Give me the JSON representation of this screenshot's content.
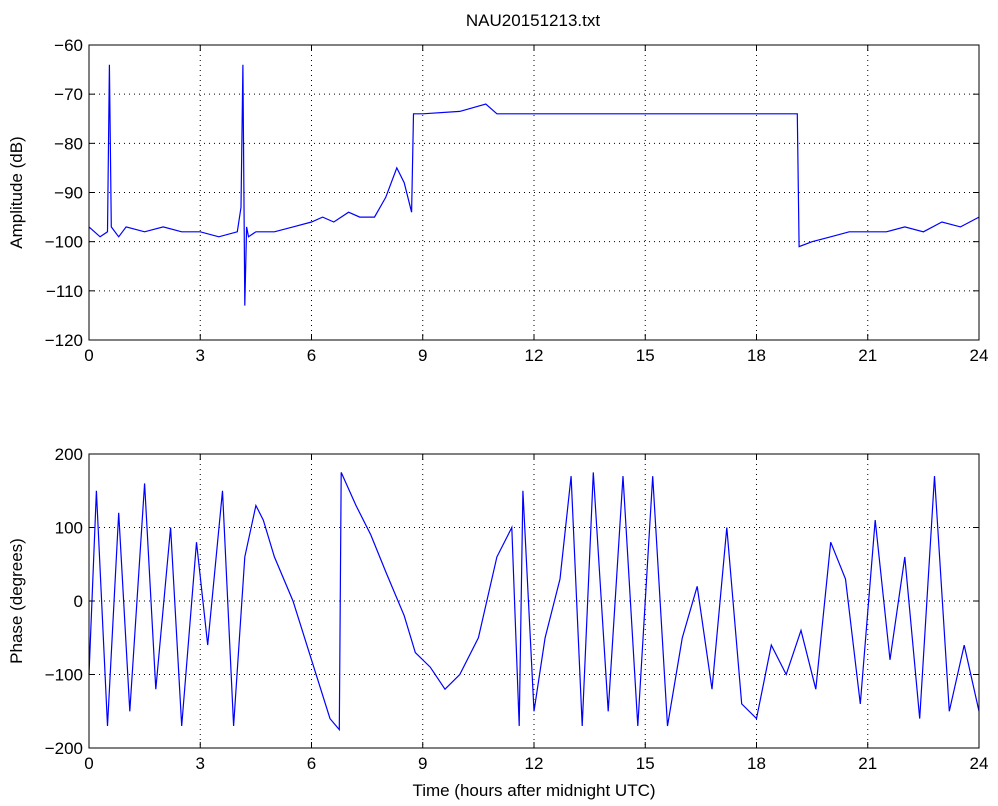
{
  "figure": {
    "title": "NAU20151213.txt",
    "colors": {
      "trace": "#0000ff",
      "axes": "#000000",
      "grid": "#000000",
      "background": "#ffffff"
    }
  },
  "chart_data": [
    {
      "type": "line",
      "title": "NAU20151213.txt",
      "xlabel": "",
      "ylabel": "Amplitude (dB)",
      "xlim": [
        0,
        24
      ],
      "ylim": [
        -120,
        -60
      ],
      "xticks": [
        "0",
        "3",
        "6",
        "9",
        "12",
        "15",
        "18",
        "21",
        "24"
      ],
      "yticks": [
        "−120",
        "−110",
        "−100",
        "−90",
        "−80",
        "−70",
        "−60"
      ],
      "grid": true,
      "series": [
        {
          "x": [
            0,
            0.3,
            0.5,
            0.55,
            0.6,
            0.8,
            1,
            1.5,
            2,
            2.5,
            3,
            3.5,
            4,
            4.1,
            4.15,
            4.2,
            4.25,
            4.3,
            4.5,
            5,
            5.5,
            6,
            6.3,
            6.6,
            7,
            7.3,
            7.7,
            8,
            8.3,
            8.5,
            8.7,
            8.75,
            8.8,
            9,
            10,
            10.7,
            11,
            12,
            13,
            14,
            15,
            16,
            17,
            18,
            19,
            19.1,
            19.15,
            19.5,
            20,
            20.5,
            21,
            21.5,
            22,
            22.5,
            23,
            23.5,
            24
          ],
          "y": [
            -97,
            -99,
            -98,
            -64,
            -97,
            -99,
            -97,
            -98,
            -97,
            -98,
            -98,
            -99,
            -98,
            -93,
            -64,
            -113,
            -97,
            -99,
            -98,
            -98,
            -97,
            -96,
            -95,
            -96,
            -94,
            -95,
            -95,
            -91,
            -85,
            -88,
            -94,
            -74,
            -74,
            -74,
            -73.5,
            -72,
            -74,
            -74,
            -74,
            -74,
            -74,
            -74,
            -74,
            -74,
            -74,
            -74,
            -101,
            -100,
            -99,
            -98,
            -98,
            -98,
            -97,
            -98,
            -96,
            -97,
            -95
          ]
        }
      ]
    },
    {
      "type": "line",
      "title": "",
      "xlabel": "Time (hours after midnight UTC)",
      "ylabel": "Phase (degrees)",
      "xlim": [
        0,
        24
      ],
      "ylim": [
        -200,
        200
      ],
      "xticks": [
        "0",
        "3",
        "6",
        "9",
        "12",
        "15",
        "18",
        "21",
        "24"
      ],
      "yticks": [
        "−200",
        "−100",
        "0",
        "100",
        "200"
      ],
      "grid": true,
      "series": [
        {
          "x": [
            0,
            0.2,
            0.5,
            0.8,
            1.1,
            1.5,
            1.8,
            2.2,
            2.5,
            2.9,
            3.2,
            3.6,
            3.9,
            4.2,
            4.5,
            4.7,
            5,
            5.5,
            6,
            6.5,
            6.75,
            6.8,
            7.2,
            7.6,
            8,
            8.5,
            8.8,
            9.2,
            9.6,
            10,
            10.5,
            11,
            11.4,
            11.6,
            11.7,
            12,
            12.3,
            12.7,
            13,
            13.3,
            13.6,
            14,
            14.4,
            14.8,
            15.2,
            15.6,
            16,
            16.4,
            16.8,
            17.2,
            17.6,
            18,
            18.4,
            18.8,
            19.2,
            19.6,
            20,
            20.4,
            20.8,
            21.2,
            21.6,
            22,
            22.4,
            22.8,
            23.2,
            23.6,
            24
          ],
          "y": [
            -100,
            150,
            -170,
            120,
            -150,
            160,
            -120,
            100,
            -170,
            80,
            -60,
            150,
            -170,
            60,
            130,
            110,
            60,
            0,
            -80,
            -160,
            -175,
            175,
            130,
            90,
            40,
            -20,
            -70,
            -90,
            -120,
            -100,
            -50,
            60,
            100,
            -170,
            150,
            -150,
            -50,
            30,
            170,
            -170,
            175,
            -150,
            170,
            -170,
            170,
            -170,
            -50,
            20,
            -120,
            100,
            -140,
            -160,
            -60,
            -100,
            -40,
            -120,
            80,
            30,
            -140,
            110,
            -80,
            60,
            -160,
            170,
            -150,
            -60,
            -150
          ]
        }
      ]
    }
  ]
}
